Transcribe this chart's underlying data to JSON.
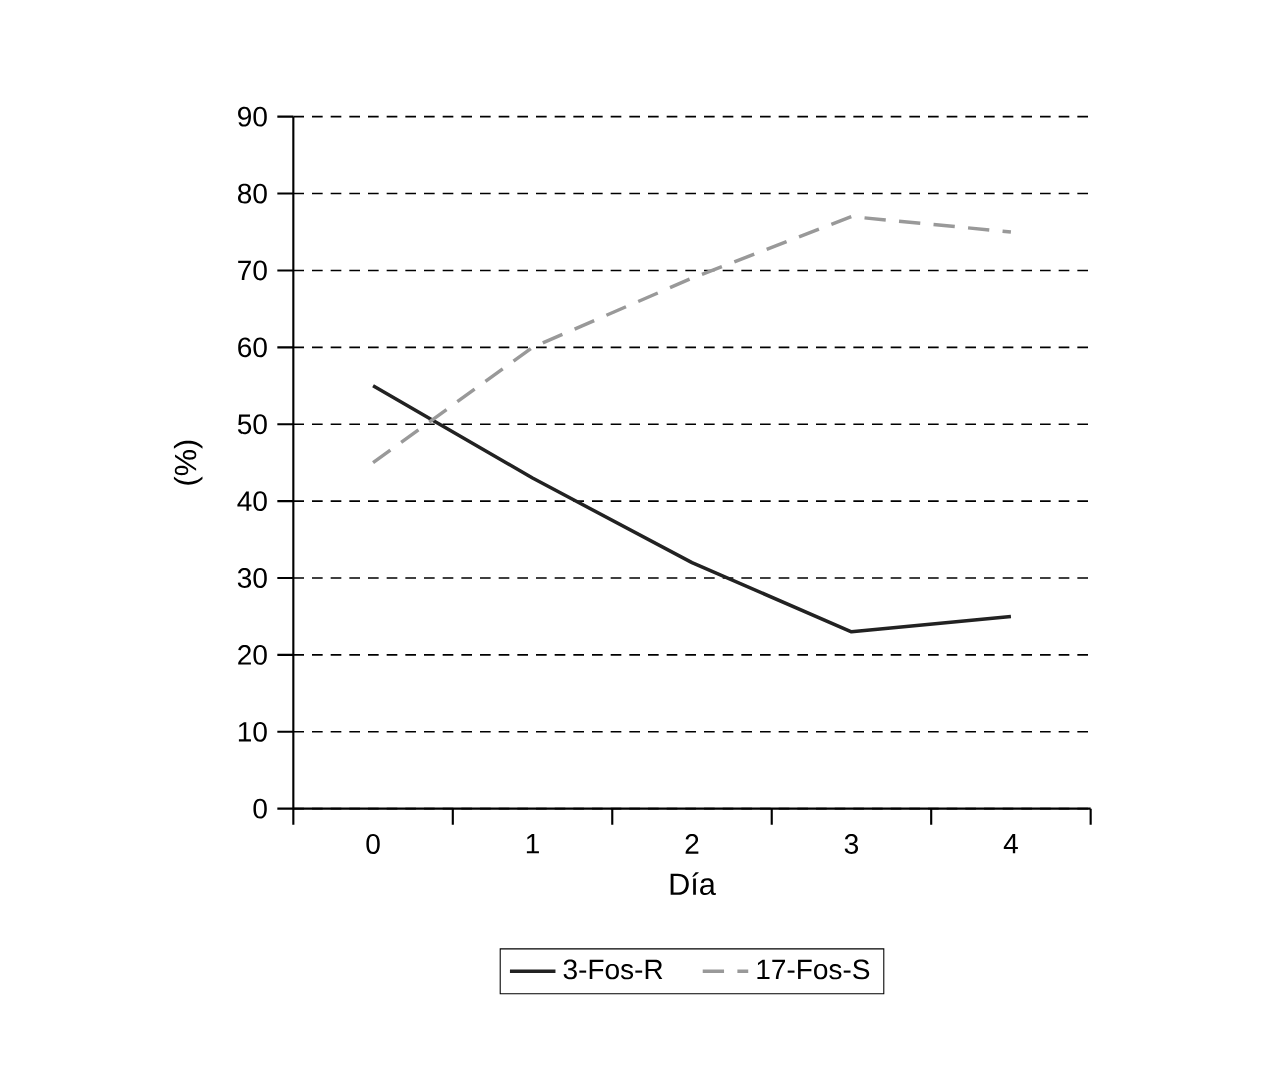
{
  "chart_data": {
    "type": "line",
    "xlabel": "Día",
    "ylabel": "(%)",
    "categories": [
      "0",
      "1",
      "2",
      "3",
      "4"
    ],
    "ylim": [
      0,
      90
    ],
    "yticks": [
      0,
      10,
      20,
      30,
      40,
      50,
      60,
      70,
      80,
      90
    ],
    "grid": "y",
    "legend": "bottom",
    "series": [
      {
        "name": "3-Fos-R",
        "color": "#222222",
        "line_style": "solid",
        "values": [
          55,
          43,
          32,
          23,
          25
        ]
      },
      {
        "name": "17-Fos-S",
        "color": "#999999",
        "line_style": "dashed",
        "values": [
          45,
          60,
          69,
          77,
          75
        ]
      }
    ]
  }
}
